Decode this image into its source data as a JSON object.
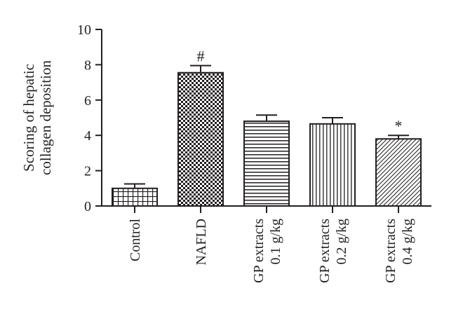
{
  "chart_data": {
    "type": "bar",
    "title": "",
    "xlabel": "",
    "ylabel_lines": [
      "Scoring of hepatic",
      "collagen deposition"
    ],
    "ylim": [
      0,
      10
    ],
    "yticks": [
      0,
      2,
      4,
      6,
      8,
      10
    ],
    "grid": false,
    "categories": [
      {
        "lines": [
          "Control"
        ]
      },
      {
        "lines": [
          "NAFLD"
        ]
      },
      {
        "lines": [
          "GP extracts",
          "0.1 g/kg"
        ]
      },
      {
        "lines": [
          "GP extracts",
          "0.2 g/kg"
        ]
      },
      {
        "lines": [
          "GP extracts",
          "0.4 g/kg"
        ]
      }
    ],
    "values": [
      1.0,
      7.55,
      4.8,
      4.65,
      3.8
    ],
    "errors": [
      0.25,
      0.4,
      0.35,
      0.35,
      0.2
    ],
    "patterns": [
      "grid",
      "checker",
      "horizontal",
      "vertical",
      "diagonal"
    ],
    "annotations": [
      "",
      "#",
      "",
      "",
      "*"
    ]
  }
}
